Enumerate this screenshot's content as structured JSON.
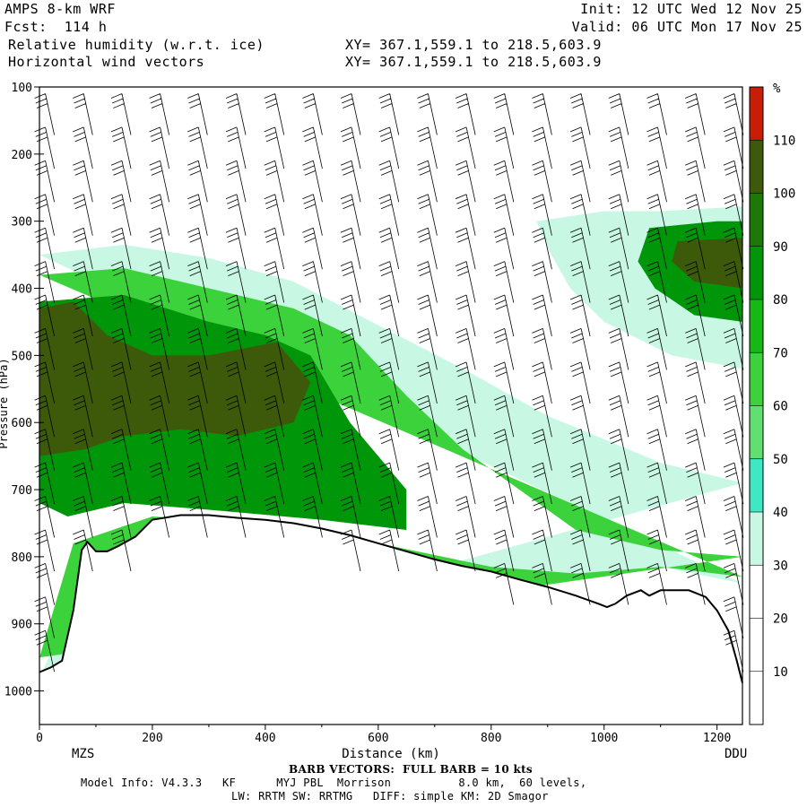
{
  "header": {
    "model": "AMPS 8-km WRF",
    "forecast": "Fcst:  114 h",
    "field1": "Relative humidity (w.r.t. ice)",
    "field2": "Horizontal wind vectors",
    "init": "Init: 12 UTC Wed 12 Nov 25",
    "valid": "Valid: 06 UTC Mon 17 Nov 25",
    "xy1": "XY= 367.1,559.1 to 218.5,603.9",
    "xy2": "XY= 367.1,559.1 to 218.5,603.9"
  },
  "footer": {
    "barb": "BARB VECTORS:  FULL BARB = 10 kts",
    "model_info": "Model Info: V4.3.3   KF      MYJ PBL  Morrison          8.0 km,  60 levels,",
    "physics": "LW: RRTM SW: RRTMG   DIFF: simple KM: 2D Smagor"
  },
  "chart_data": {
    "type": "heatmap",
    "title": "Relative humidity (w.r.t. ice) and Horizontal wind vectors",
    "xlabel": "Distance (km)",
    "ylabel": "Pressure (hPa)",
    "xlim": [
      0,
      1245
    ],
    "ylim": [
      1050,
      100
    ],
    "x_ticks": [
      0,
      200,
      400,
      600,
      800,
      1000,
      1200
    ],
    "y_ticks": [
      100,
      200,
      300,
      400,
      500,
      600,
      700,
      800,
      900,
      1000
    ],
    "start_label": "MZS",
    "end_label": "DDU",
    "colorbar": {
      "unit": "%",
      "levels": [
        10,
        20,
        30,
        40,
        50,
        60,
        70,
        80,
        90,
        100,
        110
      ],
      "colors": [
        "#ffffff",
        "#ffffff",
        "#ffffff",
        "#c8f8e4",
        "#3de8c4",
        "#60e070",
        "#3cd23c",
        "#16b816",
        "#00960a",
        "#1e7808",
        "#3c5a0a",
        "#c81e06"
      ]
    },
    "terrain_hpa": {
      "x": [
        0,
        20,
        40,
        60,
        75,
        85,
        100,
        120,
        140,
        170,
        200,
        250,
        300,
        350,
        400,
        450,
        500,
        550,
        600,
        650,
        700,
        750,
        800,
        850,
        900,
        950,
        990,
        1005,
        1020,
        1040,
        1065,
        1080,
        1100,
        1150,
        1180,
        1200,
        1220,
        1235,
        1245
      ],
      "p": [
        972,
        965,
        955,
        880,
        790,
        778,
        792,
        792,
        784,
        770,
        745,
        738,
        738,
        742,
        745,
        750,
        758,
        768,
        780,
        792,
        804,
        814,
        822,
        834,
        845,
        858,
        870,
        875,
        870,
        858,
        850,
        858,
        850,
        850,
        860,
        880,
        910,
        955,
        988
      ]
    },
    "rh_bands": [
      {
        "level": 30,
        "upper": [
          [
            0,
            350
          ],
          [
            150,
            335
          ],
          [
            300,
            355
          ],
          [
            450,
            390
          ],
          [
            600,
            455
          ],
          [
            750,
            520
          ],
          [
            900,
            590
          ],
          [
            1000,
            625
          ],
          [
            1100,
            660
          ],
          [
            1245,
            690
          ]
        ],
        "lower": [
          [
            0,
            980
          ],
          [
            100,
            800
          ],
          [
            250,
            760
          ],
          [
            400,
            760
          ],
          [
            600,
            790
          ],
          [
            800,
            820
          ],
          [
            950,
            830
          ],
          [
            1100,
            815
          ],
          [
            1245,
            840
          ]
        ]
      },
      {
        "level": 60,
        "upper": [
          [
            0,
            380
          ],
          [
            150,
            370
          ],
          [
            300,
            400
          ],
          [
            450,
            430
          ],
          [
            550,
            470
          ],
          [
            650,
            560
          ],
          [
            750,
            640
          ],
          [
            850,
            700
          ],
          [
            950,
            760
          ],
          [
            1100,
            790
          ],
          [
            1245,
            800
          ]
        ],
        "lower": [
          [
            0,
            950
          ],
          [
            60,
            780
          ],
          [
            200,
            740
          ],
          [
            400,
            750
          ],
          [
            600,
            780
          ],
          [
            800,
            815
          ],
          [
            950,
            825
          ],
          [
            1100,
            815
          ],
          [
            1245,
            830
          ]
        ]
      },
      {
        "level": 80,
        "upper": [
          [
            0,
            420
          ],
          [
            150,
            410
          ],
          [
            300,
            450
          ],
          [
            400,
            470
          ],
          [
            480,
            500
          ],
          [
            550,
            600
          ],
          [
            600,
            650
          ],
          [
            650,
            700
          ]
        ],
        "lower": [
          [
            650,
            760
          ],
          [
            500,
            745
          ],
          [
            300,
            730
          ],
          [
            150,
            720
          ],
          [
            50,
            740
          ],
          [
            0,
            720
          ]
        ]
      },
      {
        "level": 100,
        "upper": [
          [
            0,
            430
          ],
          [
            60,
            420
          ],
          [
            120,
            470
          ],
          [
            200,
            500
          ],
          [
            300,
            500
          ],
          [
            420,
            480
          ],
          [
            480,
            540
          ],
          [
            450,
            600
          ],
          [
            350,
            620
          ],
          [
            250,
            610
          ],
          [
            150,
            620
          ],
          [
            80,
            640
          ],
          [
            0,
            650
          ]
        ],
        "lower": []
      },
      {
        "level": 30,
        "upper": [
          [
            880,
            300
          ],
          [
            1000,
            285
          ],
          [
            1100,
            285
          ],
          [
            1245,
            278
          ]
        ],
        "lower": [
          [
            1245,
            520
          ],
          [
            1120,
            500
          ],
          [
            1000,
            450
          ],
          [
            940,
            400
          ],
          [
            900,
            340
          ]
        ]
      },
      {
        "level": 80,
        "upper": [
          [
            1080,
            310
          ],
          [
            1200,
            300
          ],
          [
            1245,
            300
          ]
        ],
        "lower": [
          [
            1245,
            450
          ],
          [
            1160,
            440
          ],
          [
            1090,
            400
          ],
          [
            1060,
            360
          ]
        ]
      },
      {
        "level": 100,
        "upper": [
          [
            1130,
            330
          ],
          [
            1245,
            325
          ]
        ],
        "lower": [
          [
            1245,
            400
          ],
          [
            1160,
            390
          ],
          [
            1120,
            360
          ]
        ]
      }
    ],
    "wind_barb_columns": 19,
    "wind_barb_levels": [
      110,
      160,
      210,
      260,
      310,
      360,
      410,
      460,
      510,
      560,
      610,
      660,
      710,
      760,
      810,
      860,
      910
    ]
  }
}
